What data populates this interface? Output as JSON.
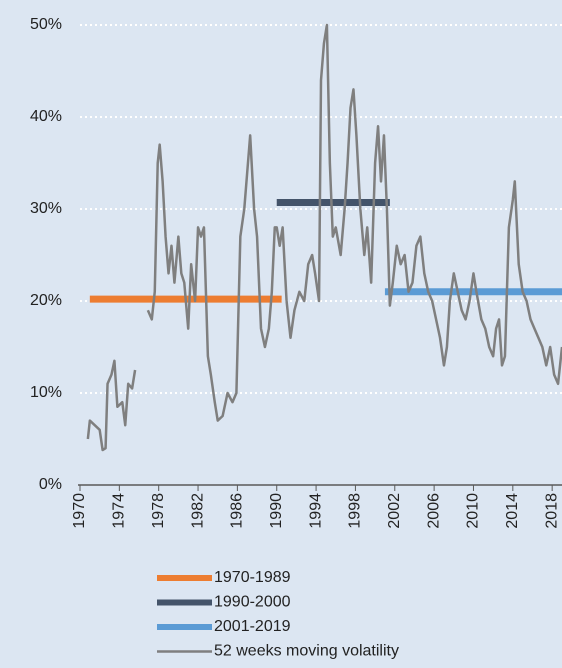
{
  "chart_data": {
    "type": "line",
    "xlim": [
      1970,
      2019
    ],
    "xticks": [
      1970,
      1974,
      1978,
      1982,
      1986,
      1990,
      1994,
      1998,
      2002,
      2006,
      2010,
      2014,
      2018
    ],
    "ylim": [
      0,
      50
    ],
    "yticks": [
      {
        "value": 0,
        "label": "0%"
      },
      {
        "value": 10,
        "label": "10%"
      },
      {
        "value": 20,
        "label": "20%"
      },
      {
        "value": 30,
        "label": "30%"
      },
      {
        "value": 40,
        "label": "40%"
      },
      {
        "value": 50,
        "label": "50%"
      }
    ],
    "grid": true,
    "series": [
      {
        "name": "1970-1989",
        "color": "#ed7d31",
        "width": 7,
        "x": [
          1971,
          1990.5
        ],
        "values": [
          20.2,
          20.2
        ]
      },
      {
        "name": "1990-2000",
        "color": "#44546a",
        "width": 7,
        "x": [
          1990,
          2001.5
        ],
        "values": [
          30.7,
          30.7
        ]
      },
      {
        "name": "2001-2019",
        "color": "#5b9bd5",
        "width": 7,
        "x": [
          2001,
          2019
        ],
        "values": [
          21,
          21
        ]
      },
      {
        "name": "52 weeks moving volatility",
        "color": "#7f7f7f",
        "width": 2.5,
        "x": [
          1970.8,
          1971,
          1971.5,
          1972,
          1972.3,
          1972.6,
          1972.8,
          1973.2,
          1973.5,
          1973.8,
          1974.3,
          1974.6,
          1974.9,
          1975.3,
          1975.6,
          1976.2,
          1976.9,
          1977.3,
          1977.6,
          1977.9,
          1978.1,
          1978.4,
          1978.7,
          1979,
          1979.3,
          1979.6,
          1980,
          1980.3,
          1980.6,
          1981,
          1981.3,
          1981.7,
          1982,
          1982.3,
          1982.6,
          1983,
          1983.3,
          1983.7,
          1984,
          1984.5,
          1985,
          1985.5,
          1985.9,
          1986.3,
          1986.7,
          1987,
          1987.3,
          1987.7,
          1988,
          1988.4,
          1988.8,
          1989.2,
          1989.5,
          1989.8,
          1990,
          1990.3,
          1990.6,
          1991,
          1991.4,
          1991.8,
          1992.3,
          1992.8,
          1993.2,
          1993.6,
          1993.9,
          1994.3,
          1994.5,
          1994.8,
          1995.1,
          1995.4,
          1995.7,
          1996,
          1996.5,
          1996.9,
          1997.2,
          1997.5,
          1997.8,
          1998.1,
          1998.5,
          1998.9,
          1999.2,
          1999.6,
          2000,
          2000.3,
          2000.6,
          2000.9,
          2001.2,
          2001.5,
          2001.8,
          2002.2,
          2002.6,
          2003,
          2003.4,
          2003.8,
          2004.2,
          2004.6,
          2005,
          2005.4,
          2005.8,
          2006.2,
          2006.6,
          2007,
          2007.3,
          2007.6,
          2008,
          2008.4,
          2008.8,
          2009.2,
          2009.6,
          2010,
          2010.3,
          2010.8,
          2011.2,
          2011.6,
          2012,
          2012.3,
          2012.6,
          2012.9,
          2013.2,
          2013.6,
          2014,
          2014.2,
          2014.6,
          2015,
          2015.4,
          2015.8,
          2016.2,
          2016.6,
          2017,
          2017.4,
          2017.8,
          2018.2,
          2018.6,
          2019
        ],
        "values": [
          5,
          7,
          6.5,
          6,
          3.8,
          4,
          11,
          12,
          13.5,
          8.5,
          9,
          6.5,
          11,
          10.5,
          12.5,
          null,
          19,
          18,
          21,
          35,
          37,
          33,
          27,
          23,
          26,
          22,
          27,
          23,
          22,
          17,
          24,
          20,
          28,
          27,
          28,
          14,
          12,
          9,
          7,
          7.5,
          10,
          9,
          10,
          27,
          30,
          34,
          38,
          30,
          27,
          17,
          15,
          17,
          21,
          28,
          28,
          26,
          28,
          20,
          16,
          19,
          21,
          20,
          24,
          25,
          23,
          20,
          44,
          48,
          50,
          35,
          27,
          28,
          25,
          30,
          35,
          41,
          43,
          38,
          30,
          25,
          28,
          22,
          35,
          39,
          33,
          38,
          30,
          19.5,
          22,
          26,
          24,
          25,
          21,
          22,
          26,
          27,
          23,
          21,
          20,
          18,
          16,
          13,
          15,
          20,
          23,
          21,
          19,
          18,
          20,
          23,
          21,
          18,
          17,
          15,
          14,
          17,
          18,
          13,
          14,
          28,
          31,
          33,
          24,
          21,
          20,
          18,
          17,
          16,
          15,
          13,
          15,
          12,
          11,
          15
        ]
      }
    ]
  }
}
